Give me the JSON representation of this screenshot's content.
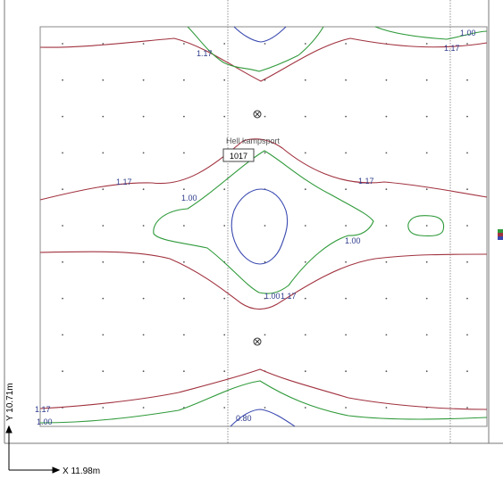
{
  "room": {
    "name": "Hell kampsport",
    "code": "1017"
  },
  "axes": {
    "x_label": "X 11.98m",
    "y_label": "Y 10.71m"
  },
  "contour_labels": {
    "red_top_center": "1.17",
    "red_top_right": "1.17",
    "green_top_right": "1.00",
    "red_mid_left": "1.17",
    "red_mid_right": "1.17",
    "green_mid_left": "1.00",
    "green_mid_right": "1.00",
    "green_center_low": "1.00",
    "red_center_low": "1.17",
    "red_bottom_left": "1.17",
    "green_bottom_left": "1.00",
    "blue_bottom_center": "0.80"
  },
  "colors": {
    "red_isoline": "#a1323f",
    "green_isoline": "#2f9a3a",
    "blue_isoline": "#3a49b0",
    "frame": "#777777",
    "label_text": "#2f3d8c"
  },
  "icons": {
    "luminaire_marker": "circle-cross-icon",
    "axis_arrow": "arrow-icon"
  }
}
